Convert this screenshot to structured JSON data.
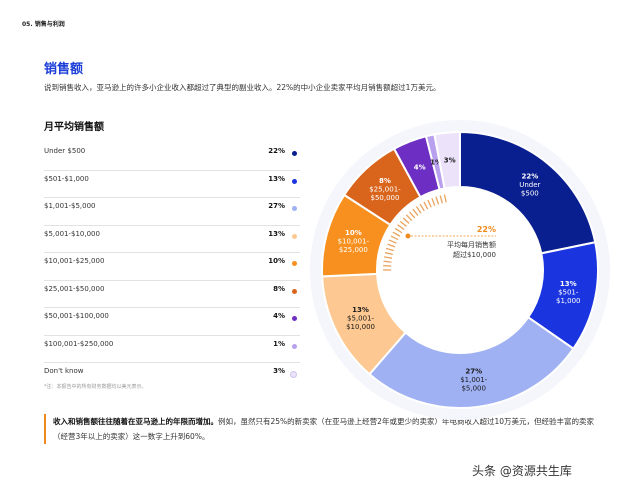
{
  "section_label": "05. 销售与利润",
  "heading": "销售额",
  "intro": "说到销售收入，亚马逊上的许多小企业收入都超过了典型的副业收入。22%的中小企业卖家平均月销售额超过1万美元。",
  "subheading": "月平均销售额",
  "footnote": "*注：本报告中的所有财务数据均以美元表示。",
  "callout_bold": "收入和销售额往往随着在亚马逊上的年限而增加。",
  "callout_rest": "例如，虽然只有25%的新卖家（在亚马逊上经营2年或更少的卖家）年电商收入超过10万美元，但经验丰富的卖家（经营3年以上的卖家）这一数字上升到60%。",
  "watermark": "头条 @资源共生库",
  "chart_data": {
    "type": "pie",
    "title": "月平均销售额",
    "categories": [
      "Under $500",
      "$501-$1,000",
      "$1,001-$5,000",
      "$5,001-$10,000",
      "$10,001-$25,000",
      "$25,001-$50,000",
      "$50,001-$100,000",
      "$100,001-$250,000",
      "Don't know"
    ],
    "values": [
      22,
      13,
      27,
      13,
      10,
      8,
      4,
      1,
      3
    ],
    "value_labels": [
      "22%",
      "13%",
      "27%",
      "13%",
      "10%",
      "8%",
      "4%",
      "1%",
      "3%"
    ],
    "slice_labels": [
      [
        "22%",
        "Under",
        "$500"
      ],
      [
        "13%",
        "$501-",
        "$1,000"
      ],
      [
        "27%",
        "$1,001-",
        "$5,000"
      ],
      [
        "13%",
        "$5,001-",
        "$10,000"
      ],
      [
        "10%",
        "$10,001-",
        "$25,000"
      ],
      [
        "8%",
        "$25,001-",
        "$50,000"
      ],
      [
        "4%"
      ],
      [
        "1%"
      ],
      [
        "3%"
      ]
    ],
    "colors": [
      "#0a1f8f",
      "#1a35e0",
      "#9fb1f3",
      "#fdc891",
      "#f7901e",
      "#d9651c",
      "#6d2fc3",
      "#b9a0ee",
      "#ece3fb"
    ],
    "label_colors": [
      "#ffffff",
      "#ffffff",
      "#1a1a1a",
      "#1a1a1a",
      "#ffffff",
      "#ffffff",
      "#ffffff",
      "#1a1a1a",
      "#1a1a1a"
    ],
    "center_value": "22%",
    "center_text": [
      "平均每月销售额",
      "超过$10,000"
    ],
    "accent_color": "#f08a1c"
  }
}
